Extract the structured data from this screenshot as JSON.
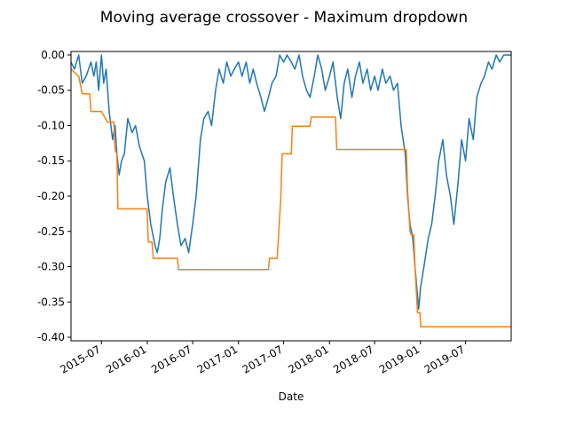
{
  "chart_data": {
    "type": "line",
    "title": "Moving average crossover - Maximum dropdown",
    "xlabel": "Date",
    "ylabel": "",
    "xlim": [
      "2015-03-01",
      "2019-12-31"
    ],
    "ylim": [
      -0.405,
      0.005
    ],
    "xticks": [
      "2015-07",
      "2016-01",
      "2016-07",
      "2017-01",
      "2017-07",
      "2018-01",
      "2018-07",
      "2019-01",
      "2019-07"
    ],
    "yticks": [
      "0.00",
      "-0.05",
      "-0.10",
      "-0.15",
      "-0.20",
      "-0.25",
      "-0.30",
      "-0.35",
      "-0.40"
    ],
    "grid": false,
    "series": [
      {
        "color": "#1f77b4",
        "points": [
          [
            "2015-03-01",
            -0.01
          ],
          [
            "2015-03-15",
            -0.02
          ],
          [
            "2015-04-01",
            0.0
          ],
          [
            "2015-04-15",
            -0.04
          ],
          [
            "2015-05-01",
            -0.03
          ],
          [
            "2015-05-20",
            -0.01
          ],
          [
            "2015-06-01",
            -0.03
          ],
          [
            "2015-06-10",
            -0.01
          ],
          [
            "2015-06-20",
            -0.05
          ],
          [
            "2015-07-01",
            0.0
          ],
          [
            "2015-07-10",
            -0.04
          ],
          [
            "2015-07-20",
            -0.02
          ],
          [
            "2015-08-01",
            -0.08
          ],
          [
            "2015-08-15",
            -0.12
          ],
          [
            "2015-08-25",
            -0.1
          ],
          [
            "2015-09-01",
            -0.14
          ],
          [
            "2015-09-10",
            -0.17
          ],
          [
            "2015-09-20",
            -0.15
          ],
          [
            "2015-10-01",
            -0.14
          ],
          [
            "2015-10-15",
            -0.09
          ],
          [
            "2015-11-01",
            -0.11
          ],
          [
            "2015-11-15",
            -0.1
          ],
          [
            "2015-12-01",
            -0.13
          ],
          [
            "2015-12-20",
            -0.15
          ],
          [
            "2016-01-01",
            -0.2
          ],
          [
            "2016-01-15",
            -0.24
          ],
          [
            "2016-02-01",
            -0.27
          ],
          [
            "2016-02-10",
            -0.28
          ],
          [
            "2016-02-20",
            -0.26
          ],
          [
            "2016-03-01",
            -0.22
          ],
          [
            "2016-03-15",
            -0.18
          ],
          [
            "2016-04-01",
            -0.16
          ],
          [
            "2016-04-15",
            -0.2
          ],
          [
            "2016-05-01",
            -0.24
          ],
          [
            "2016-05-15",
            -0.27
          ],
          [
            "2016-06-01",
            -0.26
          ],
          [
            "2016-06-15",
            -0.28
          ],
          [
            "2016-07-01",
            -0.24
          ],
          [
            "2016-07-15",
            -0.2
          ],
          [
            "2016-08-01",
            -0.12
          ],
          [
            "2016-08-15",
            -0.09
          ],
          [
            "2016-09-01",
            -0.08
          ],
          [
            "2016-09-15",
            -0.1
          ],
          [
            "2016-10-01",
            -0.05
          ],
          [
            "2016-10-15",
            -0.02
          ],
          [
            "2016-11-01",
            -0.04
          ],
          [
            "2016-11-15",
            -0.01
          ],
          [
            "2016-12-01",
            -0.03
          ],
          [
            "2016-12-15",
            -0.02
          ],
          [
            "2017-01-01",
            -0.01
          ],
          [
            "2017-01-15",
            -0.03
          ],
          [
            "2017-02-01",
            -0.01
          ],
          [
            "2017-02-15",
            -0.04
          ],
          [
            "2017-03-01",
            -0.02
          ],
          [
            "2017-03-15",
            -0.04
          ],
          [
            "2017-04-01",
            -0.06
          ],
          [
            "2017-04-15",
            -0.08
          ],
          [
            "2017-05-01",
            -0.06
          ],
          [
            "2017-05-15",
            -0.04
          ],
          [
            "2017-06-01",
            -0.03
          ],
          [
            "2017-06-15",
            0.0
          ],
          [
            "2017-07-01",
            -0.01
          ],
          [
            "2017-07-15",
            0.0
          ],
          [
            "2017-08-01",
            -0.01
          ],
          [
            "2017-08-15",
            -0.02
          ],
          [
            "2017-09-01",
            0.0
          ],
          [
            "2017-09-15",
            -0.03
          ],
          [
            "2017-10-01",
            -0.05
          ],
          [
            "2017-10-15",
            -0.06
          ],
          [
            "2017-11-01",
            -0.03
          ],
          [
            "2017-11-15",
            0.0
          ],
          [
            "2017-12-01",
            -0.02
          ],
          [
            "2017-12-15",
            -0.05
          ],
          [
            "2018-01-01",
            -0.03
          ],
          [
            "2018-01-15",
            -0.01
          ],
          [
            "2018-02-01",
            -0.06
          ],
          [
            "2018-02-15",
            -0.09
          ],
          [
            "2018-03-01",
            -0.04
          ],
          [
            "2018-03-15",
            -0.02
          ],
          [
            "2018-04-01",
            -0.06
          ],
          [
            "2018-04-15",
            -0.03
          ],
          [
            "2018-05-01",
            -0.01
          ],
          [
            "2018-05-15",
            -0.04
          ],
          [
            "2018-06-01",
            -0.02
          ],
          [
            "2018-06-15",
            -0.05
          ],
          [
            "2018-07-01",
            -0.03
          ],
          [
            "2018-07-15",
            -0.05
          ],
          [
            "2018-08-01",
            -0.02
          ],
          [
            "2018-08-15",
            -0.04
          ],
          [
            "2018-09-01",
            -0.03
          ],
          [
            "2018-09-15",
            -0.05
          ],
          [
            "2018-10-01",
            -0.04
          ],
          [
            "2018-10-15",
            -0.1
          ],
          [
            "2018-11-01",
            -0.14
          ],
          [
            "2018-11-10",
            -0.2
          ],
          [
            "2018-11-20",
            -0.24
          ],
          [
            "2018-12-01",
            -0.26
          ],
          [
            "2018-12-10",
            -0.3
          ],
          [
            "2018-12-20",
            -0.34
          ],
          [
            "2018-12-25",
            -0.36
          ],
          [
            "2019-01-01",
            -0.33
          ],
          [
            "2019-01-15",
            -0.3
          ],
          [
            "2019-02-01",
            -0.26
          ],
          [
            "2019-02-15",
            -0.24
          ],
          [
            "2019-03-01",
            -0.2
          ],
          [
            "2019-03-15",
            -0.15
          ],
          [
            "2019-04-01",
            -0.12
          ],
          [
            "2019-04-15",
            -0.17
          ],
          [
            "2019-05-01",
            -0.2
          ],
          [
            "2019-05-15",
            -0.24
          ],
          [
            "2019-06-01",
            -0.18
          ],
          [
            "2019-06-15",
            -0.12
          ],
          [
            "2019-07-01",
            -0.15
          ],
          [
            "2019-07-15",
            -0.09
          ],
          [
            "2019-08-01",
            -0.12
          ],
          [
            "2019-08-15",
            -0.06
          ],
          [
            "2019-09-01",
            -0.04
          ],
          [
            "2019-09-15",
            -0.03
          ],
          [
            "2019-10-01",
            -0.01
          ],
          [
            "2019-10-15",
            -0.02
          ],
          [
            "2019-11-01",
            0.0
          ],
          [
            "2019-11-15",
            -0.01
          ],
          [
            "2019-12-01",
            0.0
          ],
          [
            "2019-12-31",
            0.0
          ]
        ]
      },
      {
        "color": "#ff7f0e",
        "points": [
          [
            "2015-03-01",
            -0.02
          ],
          [
            "2015-04-01",
            -0.03
          ],
          [
            "2015-04-15",
            -0.055
          ],
          [
            "2015-05-15",
            -0.055
          ],
          [
            "2015-05-20",
            -0.08
          ],
          [
            "2015-07-01",
            -0.08
          ],
          [
            "2015-07-25",
            -0.095
          ],
          [
            "2015-08-20",
            -0.095
          ],
          [
            "2015-08-25",
            -0.135
          ],
          [
            "2015-09-01",
            -0.14
          ],
          [
            "2015-09-05",
            -0.218
          ],
          [
            "2015-12-31",
            -0.218
          ],
          [
            "2016-01-05",
            -0.265
          ],
          [
            "2016-01-20",
            -0.265
          ],
          [
            "2016-01-25",
            -0.288
          ],
          [
            "2016-05-01",
            -0.288
          ],
          [
            "2016-05-05",
            -0.304
          ],
          [
            "2017-05-01",
            -0.304
          ],
          [
            "2017-05-05",
            -0.288
          ],
          [
            "2017-06-05",
            -0.288
          ],
          [
            "2017-06-10",
            -0.26
          ],
          [
            "2017-06-20",
            -0.2
          ],
          [
            "2017-06-25",
            -0.14
          ],
          [
            "2017-08-01",
            -0.14
          ],
          [
            "2017-08-05",
            -0.101
          ],
          [
            "2017-10-15",
            -0.101
          ],
          [
            "2017-10-20",
            -0.088
          ],
          [
            "2018-01-25",
            -0.088
          ],
          [
            "2018-01-30",
            -0.134
          ],
          [
            "2018-11-05",
            -0.134
          ],
          [
            "2018-11-10",
            -0.19
          ],
          [
            "2018-11-20",
            -0.25
          ],
          [
            "2018-11-25",
            -0.255
          ],
          [
            "2018-12-05",
            -0.255
          ],
          [
            "2018-12-10",
            -0.3
          ],
          [
            "2018-12-20",
            -0.365
          ],
          [
            "2018-12-30",
            -0.365
          ],
          [
            "2019-01-02",
            -0.385
          ],
          [
            "2019-12-31",
            -0.385
          ]
        ]
      }
    ]
  }
}
